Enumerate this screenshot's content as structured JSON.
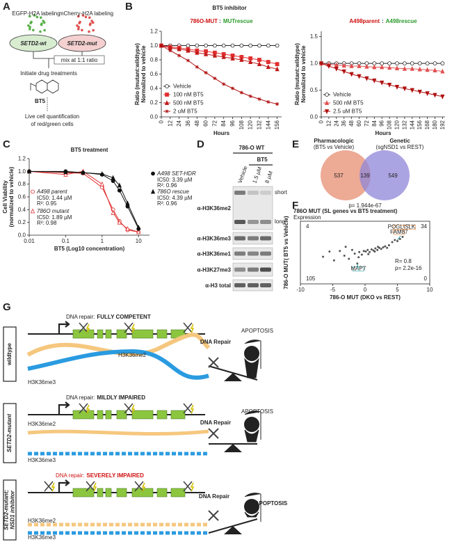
{
  "panel_labels": [
    "A",
    "B",
    "C",
    "D",
    "E",
    "F",
    "G"
  ],
  "panel_a": {
    "label_wt": "EGFP-H2A labeling",
    "label_mut": "mCherry-H2A labeling",
    "wt": "SETD2-wt",
    "mut": "SETD2-mut",
    "mix": "mix at 1:1 ratio",
    "step": "Initiate drug treatments",
    "drug": "BT5",
    "readout": [
      "Live cell quantification",
      "of red/green cells"
    ]
  },
  "panel_b_title": "BT5 inhibitor",
  "chart_data": [
    {
      "type": "line",
      "title": [
        "786O-MUT",
        ":",
        "MUTrescue"
      ],
      "title_colors": [
        "#d01010",
        "#222222",
        "#2a9a2a"
      ],
      "xlabel": "Hours",
      "ylabel": [
        "Ratio (mutant:wildtype)",
        "Normalized to vehicle"
      ],
      "xtick_rotation": 90,
      "legend": "lower left",
      "x": [
        0,
        12,
        24,
        36,
        48,
        60,
        72,
        84,
        96,
        108,
        120,
        132,
        144,
        156
      ],
      "xlim": [
        0,
        162
      ],
      "xticks": [
        0,
        12,
        24,
        36,
        48,
        60,
        72,
        84,
        96,
        108,
        120,
        132,
        144,
        156
      ],
      "ylim": [
        0,
        1.2
      ],
      "yticks": [
        {
          "value": 0,
          "label": "0.0"
        },
        {
          "value": 0.2,
          "label": "0.2"
        },
        {
          "value": 0.4,
          "label": "0.4"
        },
        {
          "value": 0.6,
          "label": "0.6"
        },
        {
          "value": 0.8,
          "label": "0.8"
        },
        {
          "value": 1,
          "label": "1.0"
        },
        {
          "value": 1.2,
          "label": "1.2"
        }
      ],
      "series": [
        {
          "name": "Vehicle",
          "color": "#222222",
          "marker": "circle-open",
          "values": [
            1,
            1,
            1,
            1,
            1,
            1,
            1,
            1,
            1,
            1,
            1,
            1,
            1,
            1
          ]
        },
        {
          "name": "100 nM BT5",
          "color": "#e03030",
          "marker": "square",
          "values": [
            1,
            0.98,
            0.97,
            0.95,
            0.93,
            0.92,
            0.9,
            0.88,
            0.86,
            0.84,
            0.82,
            0.8,
            0.77,
            0.74
          ]
        },
        {
          "name": "500 nM BT5",
          "color": "#c01818",
          "marker": "triangle",
          "values": [
            1,
            0.97,
            0.95,
            0.93,
            0.9,
            0.88,
            0.86,
            0.84,
            0.82,
            0.8,
            0.77,
            0.74,
            0.7,
            0.67
          ]
        },
        {
          "name": "2 uM BT5",
          "color": "#b01010",
          "marker": "cross",
          "values": [
            1,
            0.93,
            0.86,
            0.79,
            0.7,
            0.62,
            0.54,
            0.46,
            0.4,
            0.34,
            0.29,
            0.25,
            0.21,
            0.18
          ]
        }
      ]
    },
    {
      "type": "line",
      "title": [
        "A498parent",
        ":",
        "A498rescue"
      ],
      "title_colors": [
        "#d01010",
        "#222222",
        "#2a9a2a"
      ],
      "xlabel": "Hours",
      "ylabel": [
        "Ratio (mutant:wildtype)",
        "Normalized to vehicle"
      ],
      "xtick_rotation": 90,
      "legend": "lower left",
      "x": [
        0,
        12,
        24,
        36,
        48,
        60,
        72,
        84,
        96,
        108,
        120,
        132,
        144,
        156,
        168,
        180,
        192
      ],
      "xlim": [
        0,
        196
      ],
      "xticks": [
        0,
        12,
        24,
        36,
        48,
        60,
        72,
        84,
        96,
        108,
        120,
        132,
        144,
        156,
        168,
        180,
        192
      ],
      "ylim": [
        0,
        1.6
      ],
      "yticks": [
        {
          "value": 0,
          "label": "0.0"
        },
        {
          "value": 0.5,
          "label": "0.5"
        },
        {
          "value": 1,
          "label": "1.0"
        },
        {
          "value": 1.5,
          "label": "1.5"
        }
      ],
      "series": [
        {
          "name": "Vehicle",
          "color": "#222222",
          "marker": "circle-open",
          "values": [
            1,
            1,
            1,
            1,
            1,
            1,
            1,
            1,
            1,
            1,
            1,
            1,
            1,
            1,
            1,
            1,
            1
          ]
        },
        {
          "name": "500 nM BT5",
          "color": "#e05050",
          "marker": "triangle",
          "values": [
            1,
            0.98,
            0.97,
            0.96,
            0.95,
            0.95,
            0.94,
            0.93,
            0.93,
            0.92,
            0.91,
            0.9,
            0.9,
            0.89,
            0.88,
            0.87,
            0.85
          ]
        },
        {
          "name": "2.5 uM BT5",
          "color": "#b01010",
          "marker": "triangle-down",
          "values": [
            1,
            0.95,
            0.9,
            0.85,
            0.8,
            0.76,
            0.72,
            0.68,
            0.64,
            0.6,
            0.56,
            0.53,
            0.5,
            0.47,
            0.44,
            0.41,
            0.38
          ]
        }
      ]
    },
    {
      "type": "line",
      "title": "BT5 treatment",
      "xlabel": "BT5 (Log10 concentration)",
      "ylabel": [
        "Cell Viability",
        "(normalized to vehicle)"
      ],
      "xscale": "log",
      "x": [
        0.01,
        0.1,
        0.3,
        1,
        2,
        3,
        5,
        10
      ],
      "xlim": [
        0.01,
        20
      ],
      "xticks": [
        0.01,
        0.1,
        1,
        10
      ],
      "ylim": [
        0,
        1.2
      ],
      "yticks": [
        {
          "value": 0,
          "label": "0.0"
        },
        {
          "value": 0.2,
          "label": "0.2"
        },
        {
          "value": 0.4,
          "label": "0.4"
        },
        {
          "value": 0.6,
          "label": "0.6"
        },
        {
          "value": 0.8,
          "label": "0.8"
        },
        {
          "value": 1,
          "label": "1.0"
        },
        {
          "value": 1.2,
          "label": "1.2"
        }
      ],
      "series": [
        {
          "name": "A498 parent",
          "color": "#e03030",
          "marker": "circle-open",
          "notes": [
            "IC50: 1.44 µM",
            "R²: 0.95"
          ],
          "values": [
            1,
            0.98,
            0.97,
            0.75,
            0.4,
            0.22,
            0.08,
            0.05
          ]
        },
        {
          "name": "786O mutant",
          "color": "#e03030",
          "marker": "triangle-open",
          "notes": [
            "IC50: 1.89 µM",
            "R²: 0.98"
          ],
          "values": [
            1,
            0.95,
            1,
            0.8,
            0.35,
            0.2,
            0.1,
            0.05
          ]
        },
        {
          "name": "A498 SET-HDR",
          "color": "#111111",
          "marker": "circle",
          "notes": [
            "IC50: 3.39 µM",
            "R²: 0.96"
          ],
          "values": [
            1,
            1,
            0.98,
            0.95,
            0.85,
            0.7,
            0.45,
            0.1
          ]
        },
        {
          "name": "786O rescue",
          "color": "#111111",
          "marker": "triangle",
          "notes": [
            "IC50: 4.39 µM",
            "R²: 0.96"
          ],
          "values": [
            1,
            0.99,
            0.98,
            0.96,
            0.9,
            0.78,
            0.5,
            0.12
          ]
        }
      ]
    },
    {
      "type": "scatter",
      "title": "786O MUT (SL genes vs BT5 treatment)",
      "subtitle": "Expression",
      "xlabel": "786-O MUT (DKO vs REST)",
      "ylabel": "786-O MUT( BT5 vs Vehicle)",
      "color": "#555555",
      "xlim": [
        -10,
        10
      ],
      "xticks": [
        -10,
        -5,
        0,
        5,
        10
      ],
      "ylim": [
        -6,
        6
      ],
      "x": [
        -6.5,
        -4.8,
        -3.9,
        -3.2,
        -2.5,
        -2,
        -1.6,
        -1.2,
        -0.9,
        -0.5,
        -0.2,
        0.1,
        0.4,
        0.7,
        1,
        1.3,
        1.6,
        1.9,
        2.2,
        2.5,
        2.8,
        3.1,
        3.4,
        3.7,
        4.2,
        4.6,
        5,
        5.4,
        5.8,
        -1,
        0.5,
        1.5,
        2,
        -3,
        -5.5
      ],
      "y": [
        -0.8,
        -1.5,
        0.3,
        -0.6,
        -1.2,
        0.5,
        -0.2,
        -2.1,
        0.1,
        -0.4,
        0.3,
        0.2,
        0.5,
        0.1,
        0.6,
        0.4,
        0.8,
        0.5,
        0.9,
        0.7,
        1,
        1.2,
        0.9,
        1.4,
        2,
        2.4,
        2.2,
        2.6,
        3,
        -0.9,
        -0.3,
        0.2,
        1.1,
        1.1,
        0.2
      ],
      "quadrant_counts": [
        4,
        34,
        105,
        0
      ],
      "annotations": [
        "R= 0.8",
        "p= 2.2e-16"
      ],
      "genes": [
        "POGLU1",
        "SLK",
        "FAM87",
        "MAP7"
      ]
    }
  ],
  "panel_d": {
    "header": "786-O WT",
    "treatment": "BT5",
    "lanes": [
      "Vehicle",
      "1.5 µM",
      "8 µM"
    ],
    "exposures": [
      "short",
      "long"
    ],
    "blots": [
      "α-H3K36me2",
      "α-H3K36me3",
      "α-H3K36me1",
      "α-H3K27me3",
      "α-H3 total"
    ]
  },
  "panel_e": {
    "left": [
      "Pharmacologic",
      "(BT5 vs Vehicle)"
    ],
    "right": [
      "Genetic",
      "(sgNSD1 vs REST)"
    ],
    "counts": [
      537,
      139,
      549
    ],
    "pvalue": "p= 1.944e-67"
  },
  "panel_g": {
    "rows": [
      {
        "genotype": [
          "wildtype"
        ],
        "prefix": "DNA repair:",
        "status": "FULLY COMPETENT",
        "me2": "H3K36me2",
        "me3": "H3K36me3",
        "repair": "DNA Repair",
        "apoptosis": "APOPTOSIS"
      },
      {
        "genotype": [
          "SETD2-mutant"
        ],
        "prefix": "DNA repair:",
        "status": "MILDLY IMPAIRED",
        "me2": "H3K36me2",
        "me3": "H3K36me3",
        "repair": "DNA Repair",
        "apoptosis": "APOPTOSIS"
      },
      {
        "genotype": [
          "SETD2-mutant;",
          "NSD1 inhibitor"
        ],
        "prefix": "DNA repair:",
        "status": "SEVERELY IMPAIRED",
        "me2": "H3K36me2",
        "me3": "H3K36me3",
        "repair": "DNA Repair",
        "apoptosis": "APOPTOSIS"
      }
    ]
  }
}
